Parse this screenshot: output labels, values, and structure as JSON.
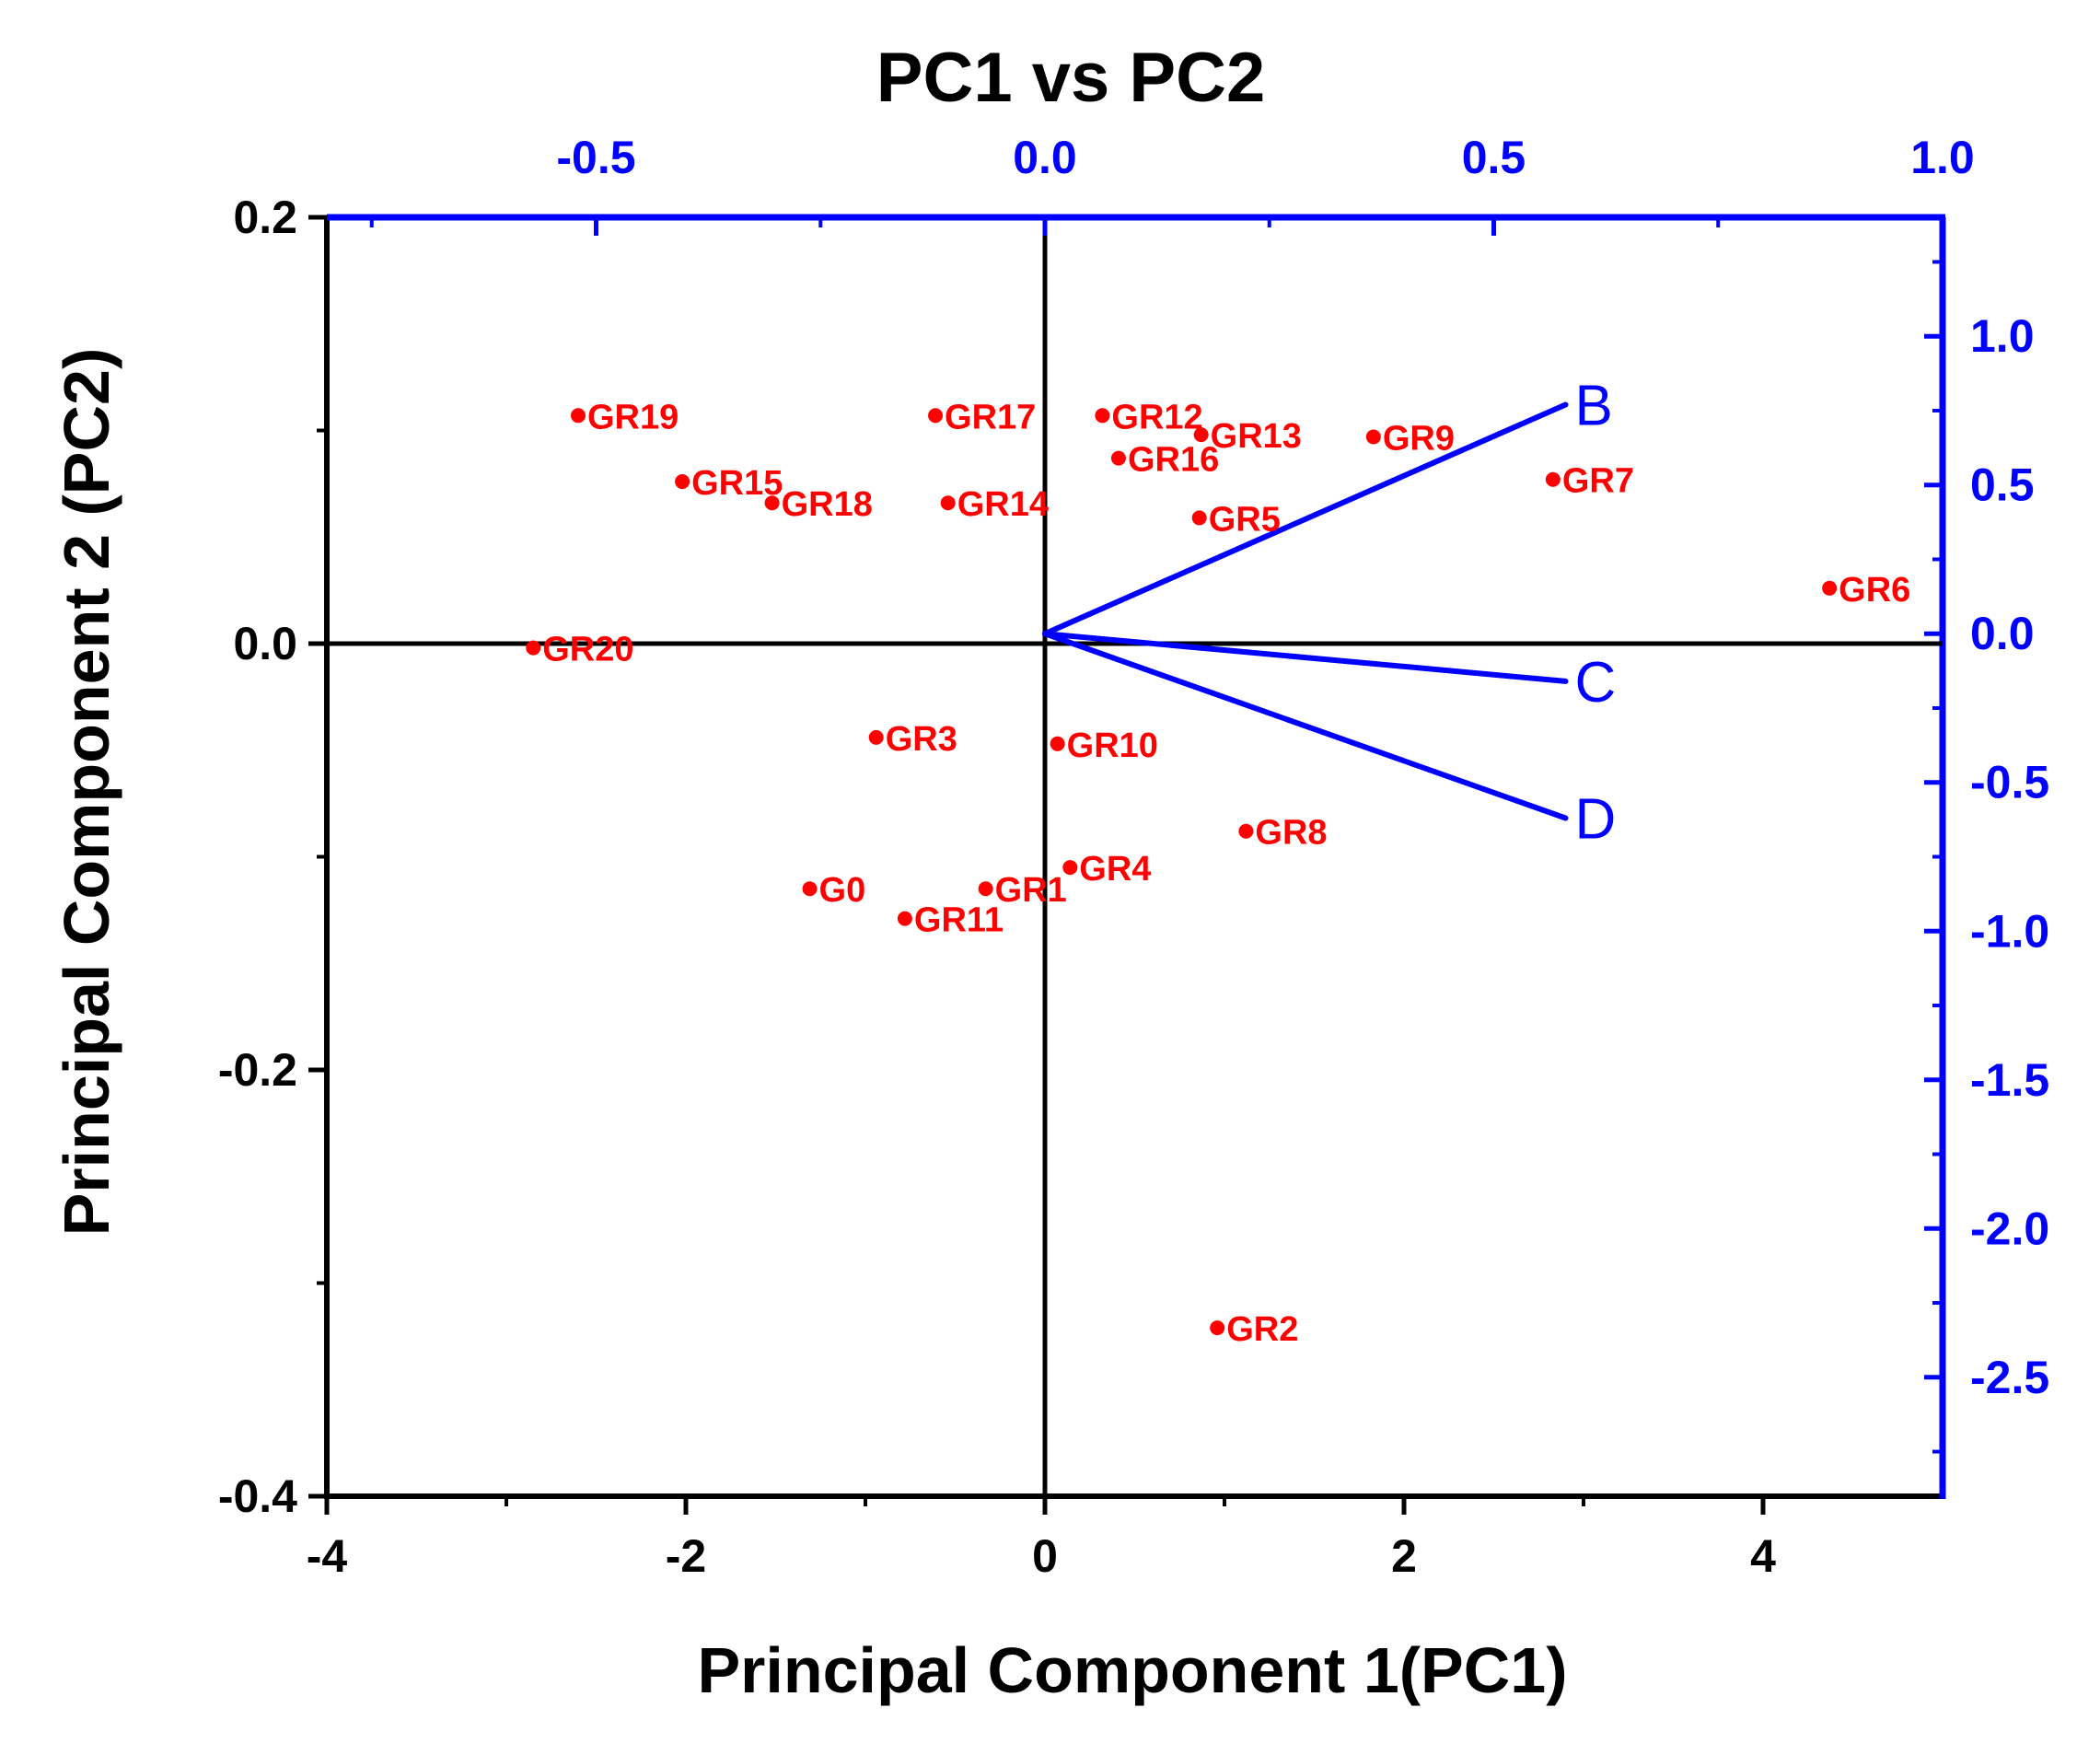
{
  "chart_data": {
    "type": "scatter",
    "subtype": "biplot",
    "title": "PC1 vs PC2",
    "xlabel": "Principal Component 1(PC1)",
    "ylabel": "Principal Component 2 (PC2)",
    "axes": {
      "bottom": {
        "range": [
          -4,
          5
        ],
        "ticks": [
          -4,
          -2,
          0,
          2,
          4
        ],
        "tick_labels": [
          "-4",
          "-2",
          "0",
          "2",
          "4"
        ],
        "color": "#000000"
      },
      "left": {
        "range": [
          -0.4,
          0.2
        ],
        "ticks": [
          -0.4,
          -0.2,
          0.0,
          0.2
        ],
        "tick_labels": [
          "-0.4",
          "-0.2",
          "0.0",
          "0.2"
        ],
        "color": "#000000"
      },
      "top": {
        "range": [
          -0.8,
          1.0
        ],
        "ticks": [
          -0.5,
          0.0,
          0.5,
          1.0
        ],
        "tick_labels": [
          "-0.5",
          "0.0",
          "0.5",
          "1.0"
        ],
        "color": "#0000ff"
      },
      "right": {
        "range": [
          -2.9,
          1.4
        ],
        "ticks": [
          -2.5,
          -2.0,
          -1.5,
          -1.0,
          -0.5,
          0.0,
          0.5,
          1.0
        ],
        "tick_labels": [
          "-2.5",
          "-2.0",
          "-1.5",
          "-1.0",
          "-0.5",
          "0.0",
          "0.5",
          "1.0"
        ],
        "color": "#0000ff"
      }
    },
    "series": [
      {
        "name": "Scores",
        "color": "#ff0000",
        "axes": [
          "bottom",
          "left"
        ],
        "points": [
          {
            "label": "GR19",
            "x": -2.6,
            "y": 0.107
          },
          {
            "label": "GR17",
            "x": -0.61,
            "y": 0.107
          },
          {
            "label": "GR12",
            "x": 0.32,
            "y": 0.107
          },
          {
            "label": "GR13",
            "x": 0.87,
            "y": 0.098
          },
          {
            "label": "GR9",
            "x": 1.83,
            "y": 0.097
          },
          {
            "label": "GR16",
            "x": 0.41,
            "y": 0.087
          },
          {
            "label": "GR15",
            "x": -2.02,
            "y": 0.076
          },
          {
            "label": "GR7",
            "x": 2.83,
            "y": 0.077
          },
          {
            "label": "GR18",
            "x": -1.52,
            "y": 0.066
          },
          {
            "label": "GR14",
            "x": -0.54,
            "y": 0.066
          },
          {
            "label": "GR5",
            "x": 0.86,
            "y": 0.059
          },
          {
            "label": "GR6",
            "x": 4.37,
            "y": 0.026
          },
          {
            "label": "GR20",
            "x": -2.85,
            "y": -0.002
          },
          {
            "label": "GR3",
            "x": -0.94,
            "y": -0.044
          },
          {
            "label": "GR10",
            "x": 0.07,
            "y": -0.047
          },
          {
            "label": "GR8",
            "x": 1.12,
            "y": -0.088
          },
          {
            "label": "GR4",
            "x": 0.14,
            "y": -0.105
          },
          {
            "label": "G0",
            "x": -1.31,
            "y": -0.115
          },
          {
            "label": "GR1",
            "x": -0.33,
            "y": -0.115
          },
          {
            "label": "GR11",
            "x": -0.78,
            "y": -0.129
          },
          {
            "label": "GR2",
            "x": 0.96,
            "y": -0.321
          }
        ]
      }
    ],
    "loadings": {
      "name": "Loadings",
      "color": "#0000ff",
      "axes": [
        "top",
        "right"
      ],
      "vectors": [
        {
          "label": "B",
          "x": 0.58,
          "y": 0.77
        },
        {
          "label": "C",
          "x": 0.58,
          "y": -0.16
        },
        {
          "label": "D",
          "x": 0.58,
          "y": -0.62
        }
      ]
    },
    "grid": false,
    "zero_lines": true
  }
}
